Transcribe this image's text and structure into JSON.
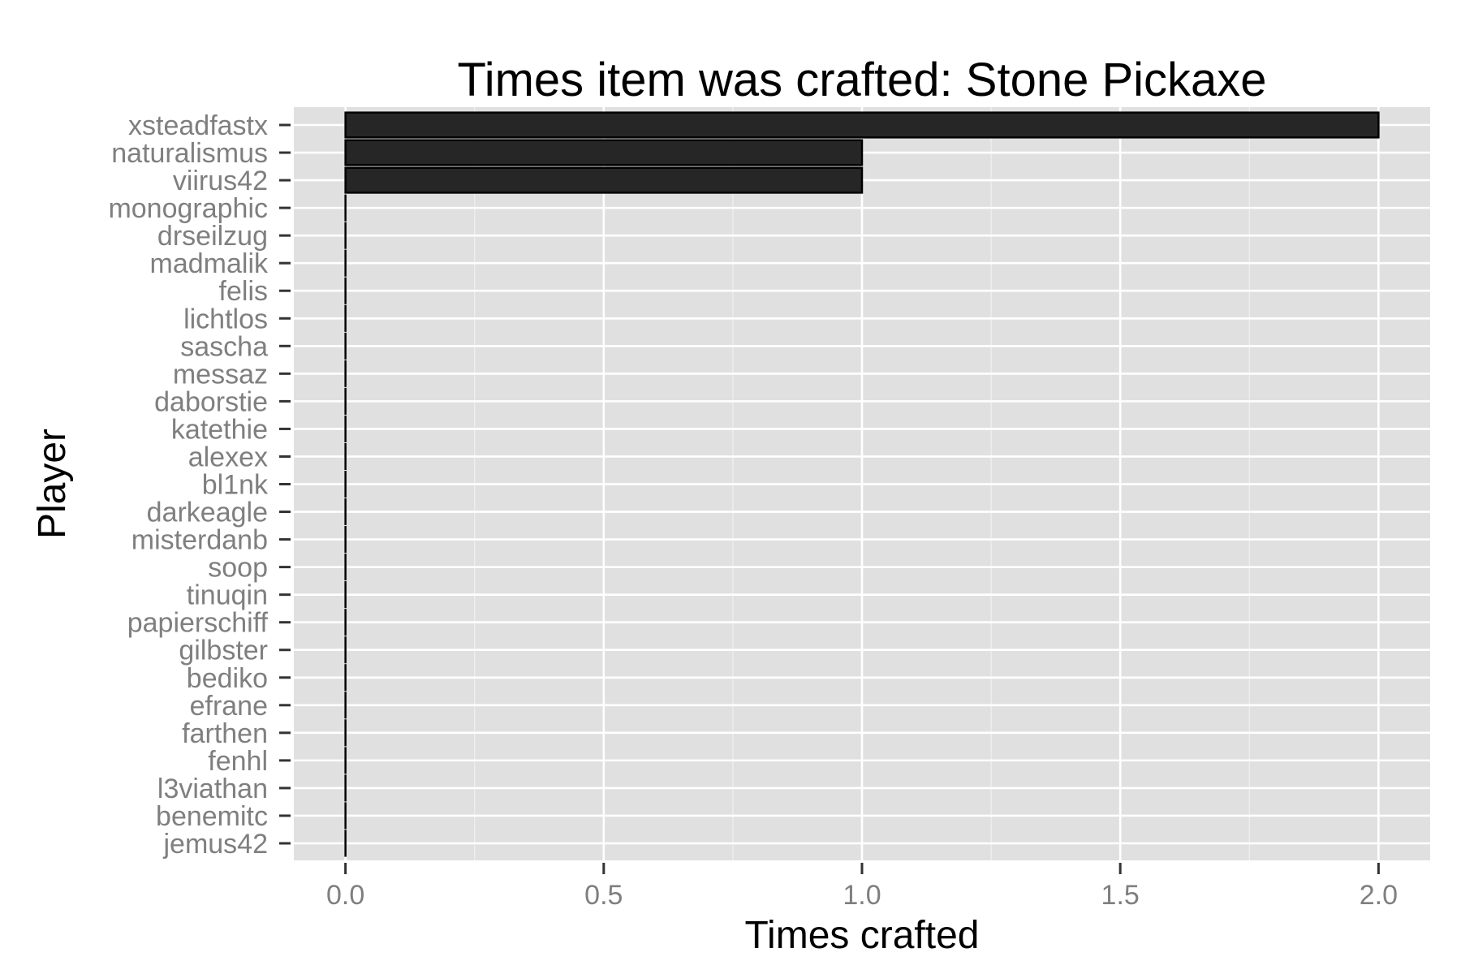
{
  "chart_data": {
    "type": "bar",
    "orientation": "horizontal",
    "title": "Times item was crafted: Stone Pickaxe",
    "xlabel": "Times crafted",
    "ylabel": "Player",
    "categories": [
      "xsteadfastx",
      "naturalismus",
      "viirus42",
      "monographic",
      "drseilzug",
      "madmalik",
      "felis",
      "lichtlos",
      "sascha",
      "messaz",
      "daborstie",
      "katethie",
      "alexex",
      "bl1nk",
      "darkeagle",
      "misterdanb",
      "soop",
      "tinuqin",
      "papierschiff",
      "gilbster",
      "bediko",
      "efrane",
      "farthen",
      "fenhl",
      "l3viathan",
      "benemitc",
      "jemus42"
    ],
    "values": [
      2,
      1,
      1,
      0,
      0,
      0,
      0,
      0,
      0,
      0,
      0,
      0,
      0,
      0,
      0,
      0,
      0,
      0,
      0,
      0,
      0,
      0,
      0,
      0,
      0,
      0,
      0
    ],
    "xlim": [
      -0.1,
      2.1
    ],
    "x_ticks": [
      0.0,
      0.5,
      1.0,
      1.5,
      2.0
    ],
    "x_tick_labels": [
      "0.0",
      "0.5",
      "1.0",
      "1.5",
      "2.0"
    ],
    "grid": true,
    "legend": "none",
    "colors": {
      "panel_background": "#e0e0e0",
      "grid_major": "#ffffff",
      "grid_minor": "#f0f0f0",
      "bar_fill": "#262626",
      "bar_outline": "#000000",
      "tick_label": "#7f7f7f",
      "tick_mark": "#333333"
    }
  }
}
